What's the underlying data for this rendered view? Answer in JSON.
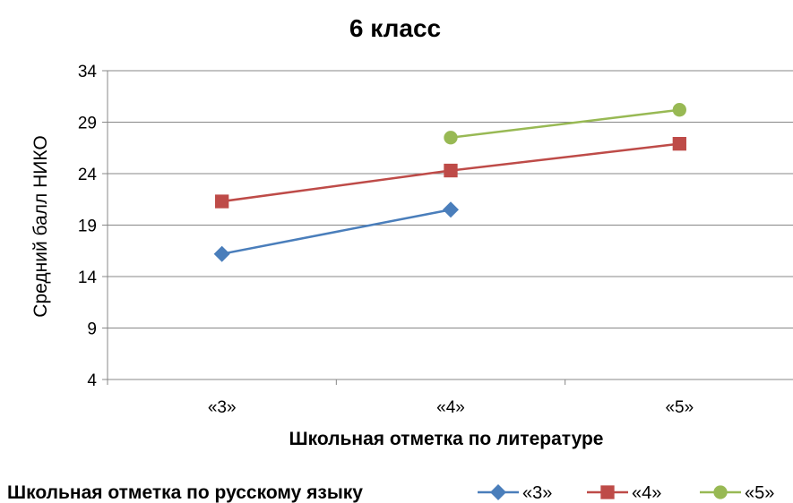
{
  "chart_data": {
    "type": "line",
    "title": "6 класс",
    "xlabel": "Школьная отметка по литературе",
    "ylabel": "Средний балл НИКО",
    "categories": [
      "«3»",
      "«4»",
      "«5»"
    ],
    "ylim": [
      4,
      34
    ],
    "yticks": [
      4,
      9,
      14,
      19,
      24,
      29,
      34
    ],
    "grid": true,
    "legend_title": "Школьная отметка по русскому языку",
    "legend_position": "bottom",
    "series": [
      {
        "name": "«3»",
        "values": [
          16.2,
          20.5,
          null
        ],
        "color": "#4a7ebb",
        "marker": "diamond"
      },
      {
        "name": "«4»",
        "values": [
          21.3,
          24.3,
          26.9
        ],
        "color": "#be4b48",
        "marker": "square"
      },
      {
        "name": "«5»",
        "values": [
          null,
          27.5,
          30.2
        ],
        "color": "#98b954",
        "marker": "circle"
      }
    ]
  }
}
